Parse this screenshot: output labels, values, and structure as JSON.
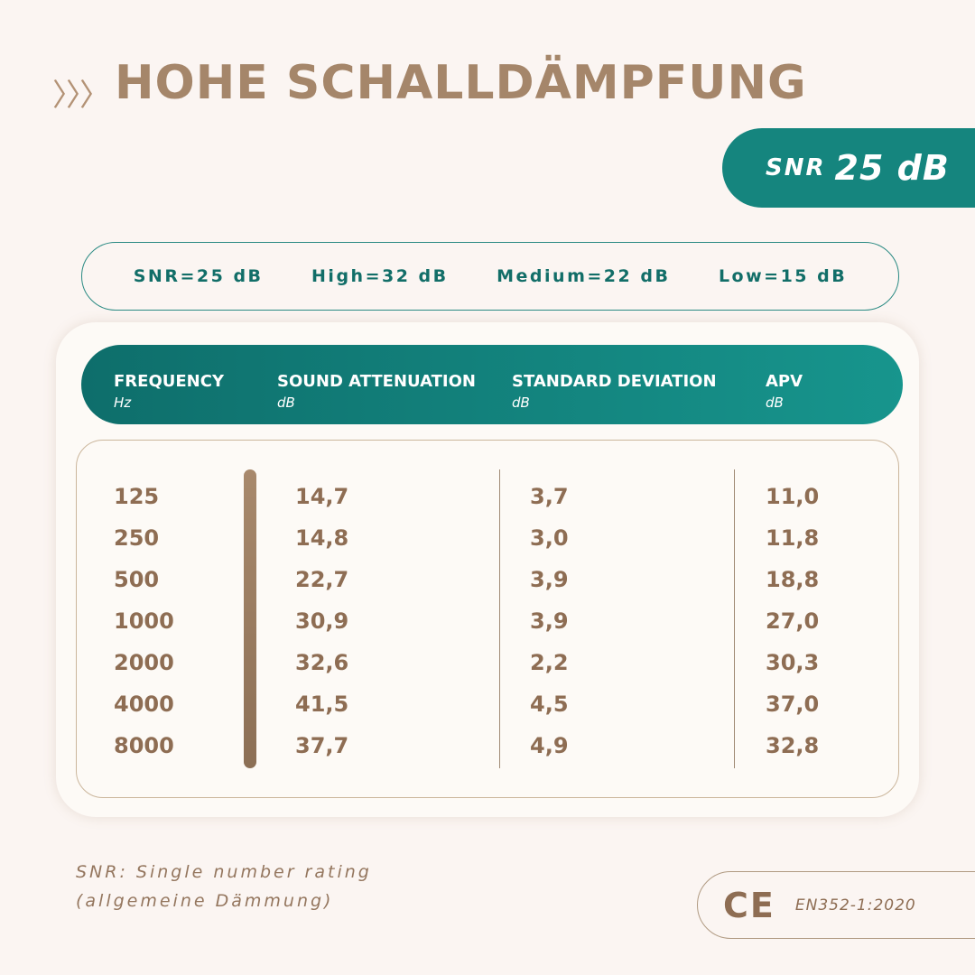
{
  "title": "HOHE SCHALLDÄMPFUNG",
  "title_icon": "triple-chevron-right-icon",
  "snr_badge": {
    "label": "SNR",
    "value": "25 dB"
  },
  "ratings": [
    "SNR=25 dB",
    "High=32 dB",
    "Medium=22 dB",
    "Low=15 dB"
  ],
  "table": {
    "headers": [
      {
        "label": "FREQUENCY",
        "unit": "Hz"
      },
      {
        "label": "SOUND ATTENUATION",
        "unit": "dB"
      },
      {
        "label": "STANDARD DEVIATION",
        "unit": "dB"
      },
      {
        "label": "APV",
        "unit": "dB"
      }
    ],
    "frequency": [
      "125",
      "250",
      "500",
      "1000",
      "2000",
      "4000",
      "8000"
    ],
    "attenuation": [
      "14,7",
      "14,8",
      "22,7",
      "30,9",
      "32,6",
      "41,5",
      "37,7"
    ],
    "deviation": [
      "3,7",
      "3,0",
      "3,9",
      "3,9",
      "2,2",
      "4,5",
      "4,9"
    ],
    "apv": [
      "11,0",
      "11,8",
      "18,8",
      "27,0",
      "30,3",
      "37,0",
      "32,8"
    ]
  },
  "footnote": [
    "SNR: Single number rating",
    "(allgemeine Dämmung)"
  ],
  "certification": {
    "logo": "CE",
    "standard": "EN352-1:2020"
  },
  "colors": {
    "teal": "#15857e",
    "brown": "#a5866a",
    "background": "#fbf5f2"
  }
}
